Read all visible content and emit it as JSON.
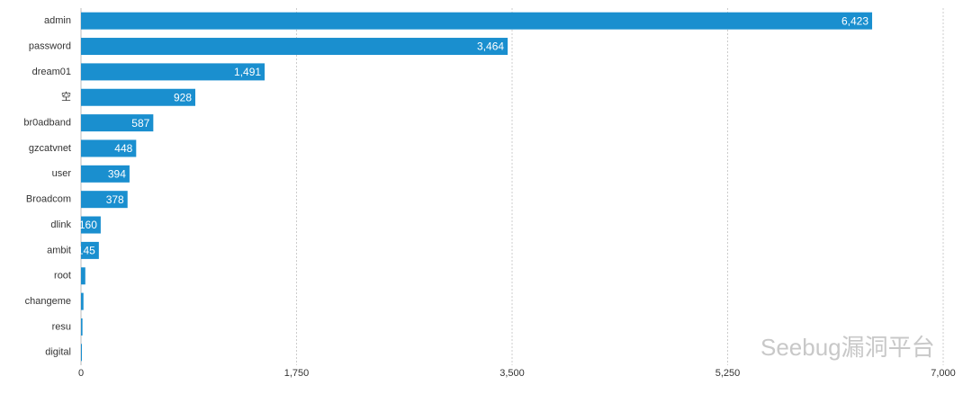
{
  "chart_data": {
    "type": "hbar",
    "categories": [
      "admin",
      "password",
      "dream01",
      "空",
      "br0adband",
      "gzcatvnet",
      "user",
      "Broadcom",
      "dlink",
      "ambit",
      "root",
      "changeme",
      "resu",
      "digital"
    ],
    "values": [
      6423,
      3464,
      1491,
      928,
      587,
      448,
      394,
      378,
      160,
      145,
      35,
      20,
      12,
      3
    ],
    "value_labels": [
      "6,423",
      "3,464",
      "1,491",
      "928",
      "587",
      "448",
      "394",
      "378",
      "160",
      "145",
      null,
      null,
      null,
      null
    ],
    "color": "#1a8fcf",
    "xlim": [
      0,
      7000
    ],
    "xticks": [
      0,
      {
        "value": 1750,
        "label": "1,750"
      },
      {
        "value": 3500,
        "label": "3,500"
      },
      {
        "value": 5250,
        "label": "5,250"
      },
      {
        "value": 7000,
        "label": "7,000"
      }
    ],
    "grid": true,
    "watermark": "Seebug漏洞平台"
  }
}
